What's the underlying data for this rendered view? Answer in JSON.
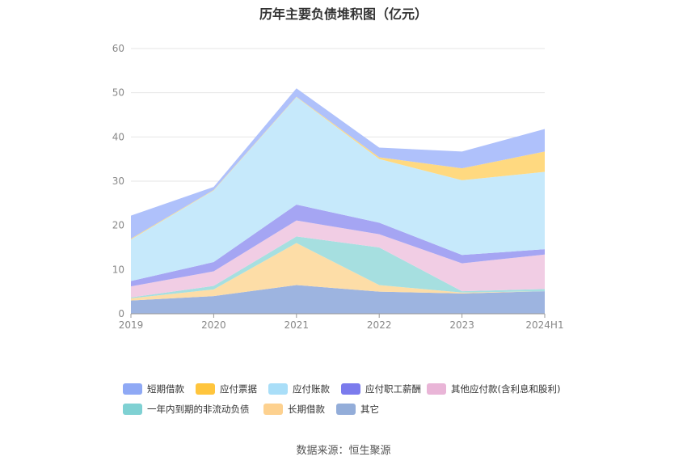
{
  "page": {
    "source": "数据来源：恒生聚源"
  },
  "chart_data": {
    "type": "area",
    "stacked": true,
    "title": "历年主要负债堆积图（亿元）",
    "xlabel": "",
    "ylabel": "",
    "categories": [
      "2019",
      "2020",
      "2021",
      "2022",
      "2023",
      "2024H1"
    ],
    "y_ticks": [
      "0",
      "10",
      "20",
      "30",
      "40",
      "50",
      "60"
    ],
    "ylim": [
      0,
      60
    ],
    "grid": true,
    "legend_position": "bottom",
    "series": [
      {
        "name": "其它",
        "color": "#9db4e0",
        "values": [
          3.0,
          4.0,
          6.5,
          5.0,
          4.6,
          5.1
        ]
      },
      {
        "name": "长期借款",
        "color": "#fddda7",
        "values": [
          0.5,
          1.5,
          9.5,
          1.5,
          0.2,
          0.0
        ]
      },
      {
        "name": "一年内到期的非流动负债",
        "color": "#a6dfe0",
        "values": [
          0.2,
          0.8,
          1.5,
          8.5,
          0.3,
          0.5
        ]
      },
      {
        "name": "其他应付款(含利息和股利)",
        "color": "#f1cde4",
        "values": [
          2.5,
          3.3,
          3.6,
          3.0,
          6.3,
          7.8
        ]
      },
      {
        "name": "应付职工薪酬",
        "color": "#a5a5f3",
        "values": [
          1.2,
          2.1,
          3.6,
          2.6,
          1.9,
          1.2
        ]
      },
      {
        "name": "应付账款",
        "color": "#c6e9fb",
        "values": [
          9.4,
          16.2,
          24.3,
          14.4,
          16.9,
          17.5
        ]
      },
      {
        "name": "应付票据",
        "color": "#ffd980",
        "values": [
          0.2,
          0.1,
          0.1,
          0.4,
          2.7,
          4.6
        ]
      },
      {
        "name": "短期借款",
        "color": "#afc1fb",
        "values": [
          5.2,
          0.7,
          1.9,
          2.2,
          3.8,
          5.1
        ]
      }
    ],
    "legend": [
      {
        "name": "短期借款",
        "color": "#8fa9f5"
      },
      {
        "name": "应付票据",
        "color": "#ffc53d"
      },
      {
        "name": "应付账款",
        "color": "#a9def8"
      },
      {
        "name": "应付职工薪酬",
        "color": "#7b7bed"
      },
      {
        "name": "其他应付款(含利息和股利)",
        "color": "#e9b5d7"
      },
      {
        "name": "一年内到期的非流动负债",
        "color": "#7fd1d3"
      },
      {
        "name": "长期借款",
        "color": "#fdd18f"
      },
      {
        "name": "其它",
        "color": "#93add9"
      }
    ]
  }
}
